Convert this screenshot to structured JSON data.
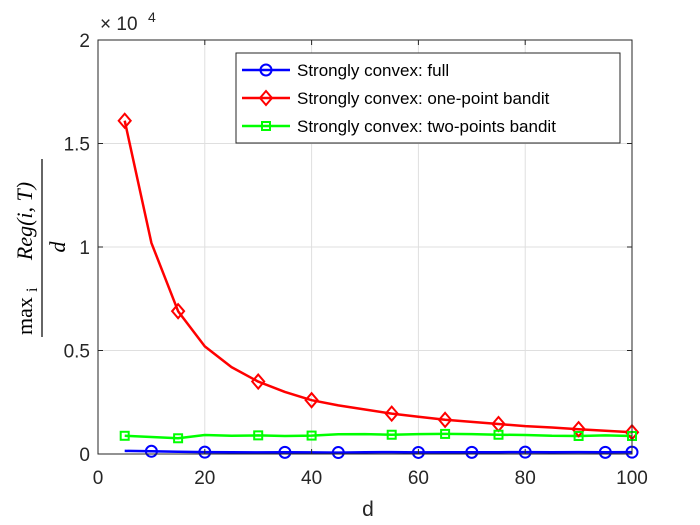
{
  "chart_data": {
    "type": "line",
    "xlabel": "d",
    "ylabel": {
      "numerator": "Reg(i, T)",
      "denominator": "d",
      "prefix": "max",
      "sub": "i"
    },
    "xlim": [
      0,
      100
    ],
    "ylim": [
      0,
      20000
    ],
    "xticks": [
      "0",
      "20",
      "40",
      "60",
      "80",
      "100"
    ],
    "yticks": [
      "0",
      "0.5",
      "1",
      "1.5",
      "2"
    ],
    "y_exponent": {
      "base": "× 10",
      "power": "4"
    },
    "grid": true,
    "legend_position": "top-right",
    "series": [
      {
        "name": "Strongly convex: full",
        "color": "#0000ff",
        "marker": "circle",
        "x": [
          5,
          10,
          15,
          20,
          25,
          30,
          35,
          40,
          45,
          50,
          55,
          60,
          65,
          70,
          75,
          80,
          85,
          90,
          95,
          100
        ],
        "values": [
          150,
          130,
          110,
          90,
          80,
          75,
          80,
          75,
          70,
          80,
          90,
          75,
          80,
          80,
          85,
          90,
          80,
          90,
          80,
          90
        ],
        "marker_x": [
          10,
          20,
          35,
          45,
          60,
          70,
          80,
          95,
          100
        ]
      },
      {
        "name": "Strongly convex: one-point bandit",
        "color": "#ff0000",
        "marker": "diamond",
        "x": [
          5,
          10,
          15,
          20,
          25,
          30,
          35,
          40,
          45,
          50,
          55,
          60,
          65,
          70,
          75,
          80,
          85,
          90,
          95,
          100
        ],
        "values": [
          16100,
          10200,
          6900,
          5200,
          4200,
          3500,
          3000,
          2600,
          2350,
          2150,
          1950,
          1800,
          1650,
          1550,
          1450,
          1350,
          1280,
          1200,
          1120,
          1050
        ],
        "marker_x": [
          5,
          15,
          30,
          40,
          55,
          65,
          75,
          90,
          100
        ]
      },
      {
        "name": "Strongly convex: two-points bandit",
        "color": "#00ff00",
        "marker": "square",
        "x": [
          5,
          10,
          15,
          20,
          25,
          30,
          35,
          40,
          45,
          50,
          55,
          60,
          65,
          70,
          75,
          80,
          85,
          90,
          95,
          100
        ],
        "values": [
          880,
          820,
          760,
          920,
          880,
          900,
          870,
          890,
          950,
          960,
          930,
          960,
          970,
          960,
          930,
          920,
          880,
          870,
          900,
          870
        ],
        "marker_x": [
          5,
          15,
          30,
          40,
          55,
          65,
          75,
          90,
          100
        ]
      }
    ]
  }
}
